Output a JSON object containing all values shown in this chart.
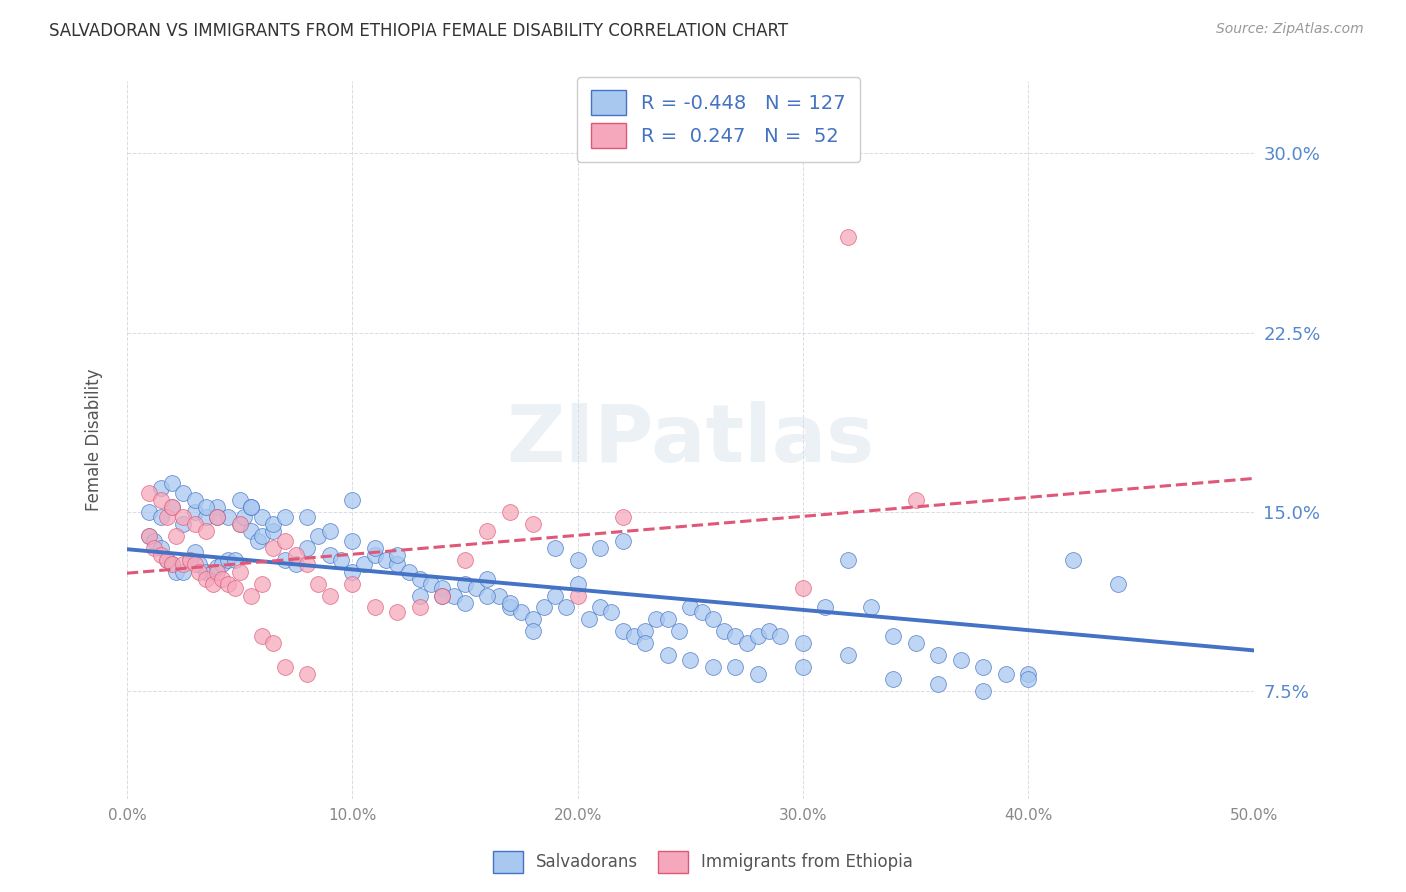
{
  "title": "SALVADORAN VS IMMIGRANTS FROM ETHIOPIA FEMALE DISABILITY CORRELATION CHART",
  "source": "Source: ZipAtlas.com",
  "ylabel": "Female Disability",
  "ytick_labels": [
    "7.5%",
    "15.0%",
    "22.5%",
    "30.0%"
  ],
  "ytick_values": [
    0.075,
    0.15,
    0.225,
    0.3
  ],
  "xlim": [
    0.0,
    0.5
  ],
  "ylim": [
    0.03,
    0.33
  ],
  "legend_blue_R": "-0.448",
  "legend_blue_N": "127",
  "legend_pink_R": "0.247",
  "legend_pink_N": "52",
  "legend_label_blue": "Salvadorans",
  "legend_label_pink": "Immigrants from Ethiopia",
  "blue_color": "#A8C8F0",
  "pink_color": "#F5A8BB",
  "blue_line_color": "#4472C4",
  "pink_line_color": "#E05878",
  "watermark_text": "ZIPatlas",
  "blue_scatter_x": [
    0.01,
    0.012,
    0.015,
    0.018,
    0.02,
    0.022,
    0.025,
    0.028,
    0.03,
    0.032,
    0.035,
    0.038,
    0.04,
    0.042,
    0.045,
    0.048,
    0.05,
    0.052,
    0.055,
    0.058,
    0.06,
    0.065,
    0.07,
    0.075,
    0.08,
    0.085,
    0.09,
    0.095,
    0.1,
    0.105,
    0.11,
    0.115,
    0.12,
    0.125,
    0.13,
    0.135,
    0.14,
    0.145,
    0.15,
    0.155,
    0.16,
    0.165,
    0.17,
    0.175,
    0.18,
    0.185,
    0.19,
    0.195,
    0.2,
    0.205,
    0.21,
    0.215,
    0.22,
    0.225,
    0.23,
    0.235,
    0.24,
    0.245,
    0.25,
    0.255,
    0.26,
    0.265,
    0.27,
    0.275,
    0.28,
    0.285,
    0.29,
    0.3,
    0.31,
    0.32,
    0.33,
    0.34,
    0.35,
    0.36,
    0.37,
    0.38,
    0.39,
    0.4,
    0.42,
    0.44,
    0.01,
    0.015,
    0.02,
    0.025,
    0.03,
    0.035,
    0.04,
    0.045,
    0.05,
    0.055,
    0.06,
    0.065,
    0.07,
    0.08,
    0.09,
    0.1,
    0.11,
    0.12,
    0.13,
    0.14,
    0.15,
    0.16,
    0.17,
    0.18,
    0.19,
    0.2,
    0.21,
    0.22,
    0.23,
    0.24,
    0.25,
    0.26,
    0.27,
    0.28,
    0.3,
    0.32,
    0.34,
    0.36,
    0.38,
    0.4,
    0.015,
    0.02,
    0.025,
    0.03,
    0.035,
    0.04,
    0.055,
    0.1
  ],
  "blue_scatter_y": [
    0.14,
    0.138,
    0.135,
    0.13,
    0.128,
    0.125,
    0.125,
    0.13,
    0.133,
    0.128,
    0.125,
    0.125,
    0.127,
    0.128,
    0.13,
    0.13,
    0.145,
    0.148,
    0.142,
    0.138,
    0.14,
    0.142,
    0.13,
    0.128,
    0.135,
    0.14,
    0.132,
    0.13,
    0.125,
    0.128,
    0.132,
    0.13,
    0.128,
    0.125,
    0.122,
    0.12,
    0.118,
    0.115,
    0.12,
    0.118,
    0.122,
    0.115,
    0.11,
    0.108,
    0.105,
    0.11,
    0.115,
    0.11,
    0.12,
    0.105,
    0.11,
    0.108,
    0.1,
    0.098,
    0.1,
    0.105,
    0.105,
    0.1,
    0.11,
    0.108,
    0.105,
    0.1,
    0.098,
    0.095,
    0.098,
    0.1,
    0.098,
    0.095,
    0.11,
    0.13,
    0.11,
    0.098,
    0.095,
    0.09,
    0.088,
    0.085,
    0.082,
    0.082,
    0.13,
    0.12,
    0.15,
    0.148,
    0.152,
    0.145,
    0.15,
    0.148,
    0.152,
    0.148,
    0.155,
    0.152,
    0.148,
    0.145,
    0.148,
    0.148,
    0.142,
    0.138,
    0.135,
    0.132,
    0.115,
    0.115,
    0.112,
    0.115,
    0.112,
    0.1,
    0.135,
    0.13,
    0.135,
    0.138,
    0.095,
    0.09,
    0.088,
    0.085,
    0.085,
    0.082,
    0.085,
    0.09,
    0.08,
    0.078,
    0.075,
    0.08,
    0.16,
    0.162,
    0.158,
    0.155,
    0.152,
    0.148,
    0.152,
    0.155
  ],
  "pink_scatter_x": [
    0.01,
    0.012,
    0.015,
    0.018,
    0.02,
    0.022,
    0.025,
    0.028,
    0.03,
    0.032,
    0.035,
    0.038,
    0.04,
    0.042,
    0.045,
    0.048,
    0.05,
    0.055,
    0.06,
    0.065,
    0.07,
    0.075,
    0.08,
    0.085,
    0.09,
    0.1,
    0.11,
    0.12,
    0.13,
    0.14,
    0.15,
    0.16,
    0.17,
    0.18,
    0.2,
    0.22,
    0.3,
    0.35,
    0.01,
    0.015,
    0.018,
    0.02,
    0.025,
    0.03,
    0.035,
    0.04,
    0.05,
    0.06,
    0.065,
    0.07,
    0.08,
    0.32
  ],
  "pink_scatter_y": [
    0.14,
    0.135,
    0.132,
    0.13,
    0.128,
    0.14,
    0.128,
    0.13,
    0.128,
    0.125,
    0.122,
    0.12,
    0.125,
    0.122,
    0.12,
    0.118,
    0.125,
    0.115,
    0.12,
    0.135,
    0.138,
    0.132,
    0.128,
    0.12,
    0.115,
    0.12,
    0.11,
    0.108,
    0.11,
    0.115,
    0.13,
    0.142,
    0.15,
    0.145,
    0.115,
    0.148,
    0.118,
    0.155,
    0.158,
    0.155,
    0.148,
    0.152,
    0.148,
    0.145,
    0.142,
    0.148,
    0.145,
    0.098,
    0.095,
    0.085,
    0.082,
    0.265
  ]
}
